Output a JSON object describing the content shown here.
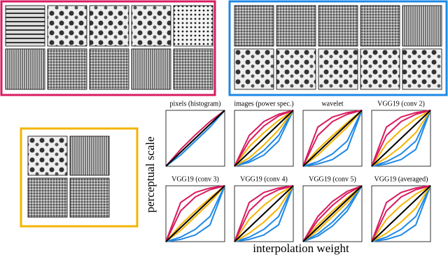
{
  "figure": {
    "ylabel": "perceptual scale",
    "xlabel": "interpolation weight"
  },
  "chart_data": [
    {
      "type": "line",
      "title": "pixels (histogram)",
      "x": [
        0,
        0.25,
        0.5,
        0.75,
        1
      ],
      "xlim": [
        0,
        1
      ],
      "ylim": [
        0,
        1
      ],
      "series": [
        {
          "color": "#1e88e5",
          "values": [
            0,
            0.2,
            0.45,
            0.7,
            1
          ]
        },
        {
          "color": "#d81b60",
          "values": [
            0,
            0.3,
            0.56,
            0.8,
            1
          ]
        },
        {
          "color": "#000000",
          "values": [
            0,
            0.25,
            0.5,
            0.75,
            1
          ]
        }
      ]
    },
    {
      "type": "line",
      "title": "images (power spec.)",
      "x": [
        0,
        0.25,
        0.5,
        0.75,
        1
      ],
      "xlim": [
        0,
        1
      ],
      "ylim": [
        0,
        1
      ],
      "series": [
        {
          "color": "#1e88e5",
          "values": [
            0,
            0.07,
            0.2,
            0.45,
            1
          ]
        },
        {
          "color": "#1e88e5",
          "values": [
            0,
            0.1,
            0.28,
            0.55,
            1
          ]
        },
        {
          "color": "#f4b400",
          "values": [
            0,
            0.35,
            0.6,
            0.82,
            1
          ]
        },
        {
          "color": "#f4b400",
          "values": [
            0,
            0.15,
            0.38,
            0.65,
            1
          ]
        },
        {
          "color": "#d81b60",
          "values": [
            0,
            0.55,
            0.8,
            0.93,
            1
          ]
        },
        {
          "color": "#d81b60",
          "values": [
            0,
            0.45,
            0.72,
            0.9,
            1
          ]
        },
        {
          "color": "#000000",
          "values": [
            0,
            0.25,
            0.5,
            0.75,
            1
          ]
        }
      ]
    },
    {
      "type": "line",
      "title": "wavelet",
      "x": [
        0,
        0.25,
        0.5,
        0.75,
        1
      ],
      "xlim": [
        0,
        1
      ],
      "ylim": [
        0,
        1
      ],
      "series": [
        {
          "color": "#1e88e5",
          "values": [
            0,
            0.04,
            0.12,
            0.3,
            1
          ]
        },
        {
          "color": "#1e88e5",
          "values": [
            0,
            0.08,
            0.22,
            0.45,
            1
          ]
        },
        {
          "color": "#f4b400",
          "values": [
            0,
            0.3,
            0.55,
            0.78,
            1
          ]
        },
        {
          "color": "#f4b400",
          "values": [
            0,
            0.2,
            0.45,
            0.7,
            1
          ]
        },
        {
          "color": "#d81b60",
          "values": [
            0,
            0.7,
            0.88,
            0.96,
            1
          ]
        },
        {
          "color": "#d81b60",
          "values": [
            0,
            0.55,
            0.8,
            0.93,
            1
          ]
        },
        {
          "color": "#000000",
          "values": [
            0,
            0.25,
            0.5,
            0.75,
            1
          ]
        }
      ]
    },
    {
      "type": "line",
      "title": "VGG19 (conv 2)",
      "x": [
        0,
        0.25,
        0.5,
        0.75,
        1
      ],
      "xlim": [
        0,
        1
      ],
      "ylim": [
        0,
        1
      ],
      "series": [
        {
          "color": "#1e88e5",
          "values": [
            0,
            0.04,
            0.12,
            0.3,
            1
          ]
        },
        {
          "color": "#1e88e5",
          "values": [
            0,
            0.08,
            0.22,
            0.45,
            1
          ]
        },
        {
          "color": "#f4b400",
          "values": [
            0,
            0.4,
            0.65,
            0.85,
            1
          ]
        },
        {
          "color": "#f4b400",
          "values": [
            0,
            0.15,
            0.35,
            0.6,
            1
          ]
        },
        {
          "color": "#d81b60",
          "values": [
            0,
            0.7,
            0.88,
            0.96,
            1
          ]
        },
        {
          "color": "#d81b60",
          "values": [
            0,
            0.55,
            0.8,
            0.93,
            1
          ]
        },
        {
          "color": "#000000",
          "values": [
            0,
            0.25,
            0.5,
            0.75,
            1
          ]
        }
      ]
    },
    {
      "type": "line",
      "title": "VGG19 (conv 3)",
      "x": [
        0,
        0.25,
        0.5,
        0.75,
        1
      ],
      "xlim": [
        0,
        1
      ],
      "ylim": [
        0,
        1
      ],
      "series": [
        {
          "color": "#1e88e5",
          "values": [
            0,
            0.04,
            0.12,
            0.3,
            1
          ]
        },
        {
          "color": "#1e88e5",
          "values": [
            0,
            0.08,
            0.22,
            0.45,
            1
          ]
        },
        {
          "color": "#f4b400",
          "values": [
            0,
            0.3,
            0.55,
            0.78,
            1
          ]
        },
        {
          "color": "#f4b400",
          "values": [
            0,
            0.2,
            0.45,
            0.7,
            1
          ]
        },
        {
          "color": "#d81b60",
          "values": [
            0,
            0.7,
            0.88,
            0.96,
            1
          ]
        },
        {
          "color": "#d81b60",
          "values": [
            0,
            0.55,
            0.8,
            0.93,
            1
          ]
        },
        {
          "color": "#000000",
          "values": [
            0,
            0.25,
            0.5,
            0.75,
            1
          ]
        }
      ]
    },
    {
      "type": "line",
      "title": "VGG19 (conv 4)",
      "x": [
        0,
        0.25,
        0.5,
        0.75,
        1
      ],
      "xlim": [
        0,
        1
      ],
      "ylim": [
        0,
        1
      ],
      "series": [
        {
          "color": "#1e88e5",
          "values": [
            0,
            0.04,
            0.12,
            0.3,
            1
          ]
        },
        {
          "color": "#1e88e5",
          "values": [
            0,
            0.08,
            0.22,
            0.45,
            1
          ]
        },
        {
          "color": "#f4b400",
          "values": [
            0,
            0.4,
            0.65,
            0.85,
            1
          ]
        },
        {
          "color": "#f4b400",
          "values": [
            0,
            0.15,
            0.35,
            0.6,
            1
          ]
        },
        {
          "color": "#d81b60",
          "values": [
            0,
            0.7,
            0.88,
            0.96,
            1
          ]
        },
        {
          "color": "#d81b60",
          "values": [
            0,
            0.55,
            0.8,
            0.93,
            1
          ]
        },
        {
          "color": "#000000",
          "values": [
            0,
            0.25,
            0.5,
            0.75,
            1
          ]
        }
      ]
    },
    {
      "type": "line",
      "title": "VGG19 (conv 5)",
      "x": [
        0,
        0.25,
        0.5,
        0.75,
        1
      ],
      "xlim": [
        0,
        1
      ],
      "ylim": [
        0,
        1
      ],
      "series": [
        {
          "color": "#1e88e5",
          "values": [
            0,
            0.1,
            0.28,
            0.55,
            1
          ]
        },
        {
          "color": "#1e88e5",
          "values": [
            0,
            0.14,
            0.35,
            0.62,
            1
          ]
        },
        {
          "color": "#f4b400",
          "values": [
            0,
            0.3,
            0.55,
            0.78,
            1
          ]
        },
        {
          "color": "#f4b400",
          "values": [
            0,
            0.2,
            0.45,
            0.7,
            1
          ]
        },
        {
          "color": "#d81b60",
          "values": [
            0,
            0.45,
            0.72,
            0.9,
            1
          ]
        },
        {
          "color": "#d81b60",
          "values": [
            0,
            0.38,
            0.65,
            0.86,
            1
          ]
        },
        {
          "color": "#000000",
          "values": [
            0,
            0.25,
            0.5,
            0.75,
            1
          ]
        }
      ]
    },
    {
      "type": "line",
      "title": "VGG19 (averaged)",
      "x": [
        0,
        0.25,
        0.5,
        0.75,
        1
      ],
      "xlim": [
        0,
        1
      ],
      "ylim": [
        0,
        1
      ],
      "series": [
        {
          "color": "#1e88e5",
          "values": [
            0,
            0.04,
            0.12,
            0.3,
            1
          ]
        },
        {
          "color": "#1e88e5",
          "values": [
            0,
            0.08,
            0.22,
            0.45,
            1
          ]
        },
        {
          "color": "#f4b400",
          "values": [
            0,
            0.4,
            0.65,
            0.85,
            1
          ]
        },
        {
          "color": "#f4b400",
          "values": [
            0,
            0.15,
            0.35,
            0.6,
            1
          ]
        },
        {
          "color": "#d81b60",
          "values": [
            0,
            0.7,
            0.88,
            0.96,
            1
          ]
        },
        {
          "color": "#d81b60",
          "values": [
            0,
            0.55,
            0.8,
            0.93,
            1
          ]
        },
        {
          "color": "#000000",
          "values": [
            0,
            0.25,
            0.5,
            0.75,
            1
          ]
        }
      ]
    }
  ]
}
